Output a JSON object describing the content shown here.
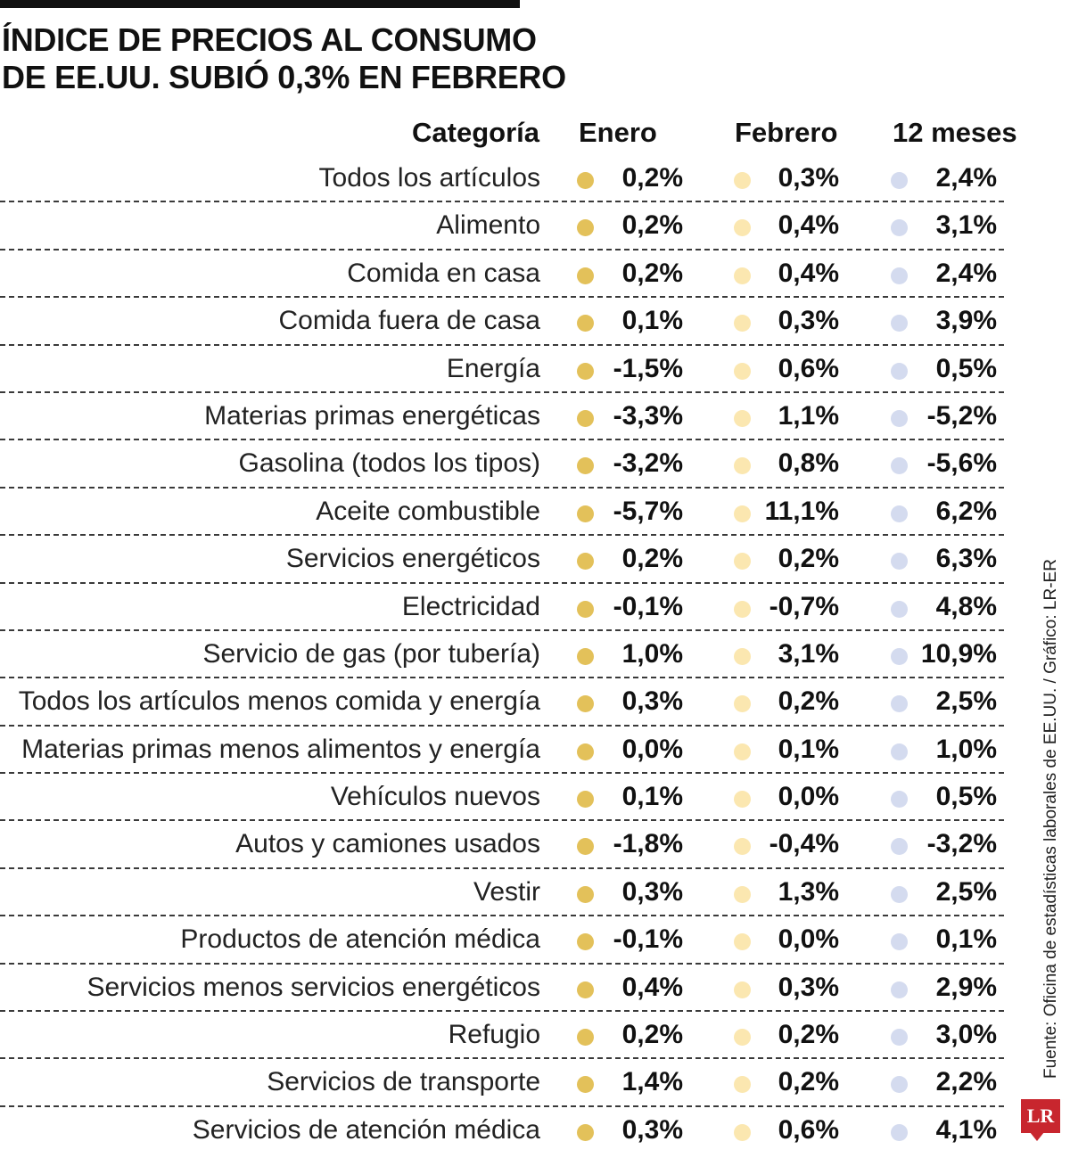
{
  "title_lines": [
    "ÍNDICE DE PRECIOS AL CONSUMO",
    "DE EE.UU. SUBIÓ 0,3% EN FEBRERO"
  ],
  "source": "Fuente: Oficina de estadísticas laborales de EE.UU. / Gráfico: LR-ER",
  "logo": "LR",
  "colors": {
    "enero_dot": "#e3c15a",
    "febrero_dot": "#fbe7b0",
    "doce_meses_dot": "#d4dbef"
  },
  "chart_data": {
    "type": "table",
    "title": "ÍNDICE DE PRECIOS AL CONSUMO DE EE.UU. SUBIÓ 0,3% EN FEBRERO",
    "columns": [
      "Categoría",
      "Enero",
      "Febrero",
      "12 meses"
    ],
    "rows": [
      {
        "cat": "Todos los artículos",
        "jan": "0,2%",
        "feb": "0,3%",
        "m12": "2,4%"
      },
      {
        "cat": "Alimento",
        "jan": "0,2%",
        "feb": "0,4%",
        "m12": "3,1%"
      },
      {
        "cat": "Comida en casa",
        "jan": "0,2%",
        "feb": "0,4%",
        "m12": "2,4%"
      },
      {
        "cat": "Comida fuera de casa",
        "jan": "0,1%",
        "feb": "0,3%",
        "m12": "3,9%"
      },
      {
        "cat": "Energía",
        "jan": "-1,5%",
        "feb": "0,6%",
        "m12": "0,5%"
      },
      {
        "cat": "Materias primas energéticas",
        "jan": "-3,3%",
        "feb": "1,1%",
        "m12": "-5,2%"
      },
      {
        "cat": "Gasolina (todos los tipos)",
        "jan": "-3,2%",
        "feb": "0,8%",
        "m12": "-5,6%"
      },
      {
        "cat": "Aceite combustible",
        "jan": "-5,7%",
        "feb": "11,1%",
        "m12": "6,2%"
      },
      {
        "cat": "Servicios energéticos",
        "jan": "0,2%",
        "feb": "0,2%",
        "m12": "6,3%"
      },
      {
        "cat": "Electricidad",
        "jan": "-0,1%",
        "feb": "-0,7%",
        "m12": "4,8%"
      },
      {
        "cat": "Servicio de gas (por tubería)",
        "jan": "1,0%",
        "feb": "3,1%",
        "m12": "10,9%"
      },
      {
        "cat": "Todos los artículos menos comida y energía",
        "jan": "0,3%",
        "feb": "0,2%",
        "m12": "2,5%"
      },
      {
        "cat": "Materias primas menos alimentos y energía",
        "jan": "0,0%",
        "feb": "0,1%",
        "m12": "1,0%"
      },
      {
        "cat": "Vehículos nuevos",
        "jan": "0,1%",
        "feb": "0,0%",
        "m12": "0,5%"
      },
      {
        "cat": "Autos y camiones usados",
        "jan": "-1,8%",
        "feb": "-0,4%",
        "m12": "-3,2%"
      },
      {
        "cat": "Vestir",
        "jan": "0,3%",
        "feb": "1,3%",
        "m12": "2,5%"
      },
      {
        "cat": "Productos de atención médica",
        "jan": "-0,1%",
        "feb": "0,0%",
        "m12": "0,1%"
      },
      {
        "cat": "Servicios menos servicios energéticos",
        "jan": "0,4%",
        "feb": "0,3%",
        "m12": "2,9%"
      },
      {
        "cat": "Refugio",
        "jan": "0,2%",
        "feb": "0,2%",
        "m12": "3,0%"
      },
      {
        "cat": "Servicios de transporte",
        "jan": "1,4%",
        "feb": "0,2%",
        "m12": "2,2%"
      },
      {
        "cat": "Servicios de atención médica",
        "jan": "0,3%",
        "feb": "0,6%",
        "m12": "4,1%"
      }
    ]
  }
}
